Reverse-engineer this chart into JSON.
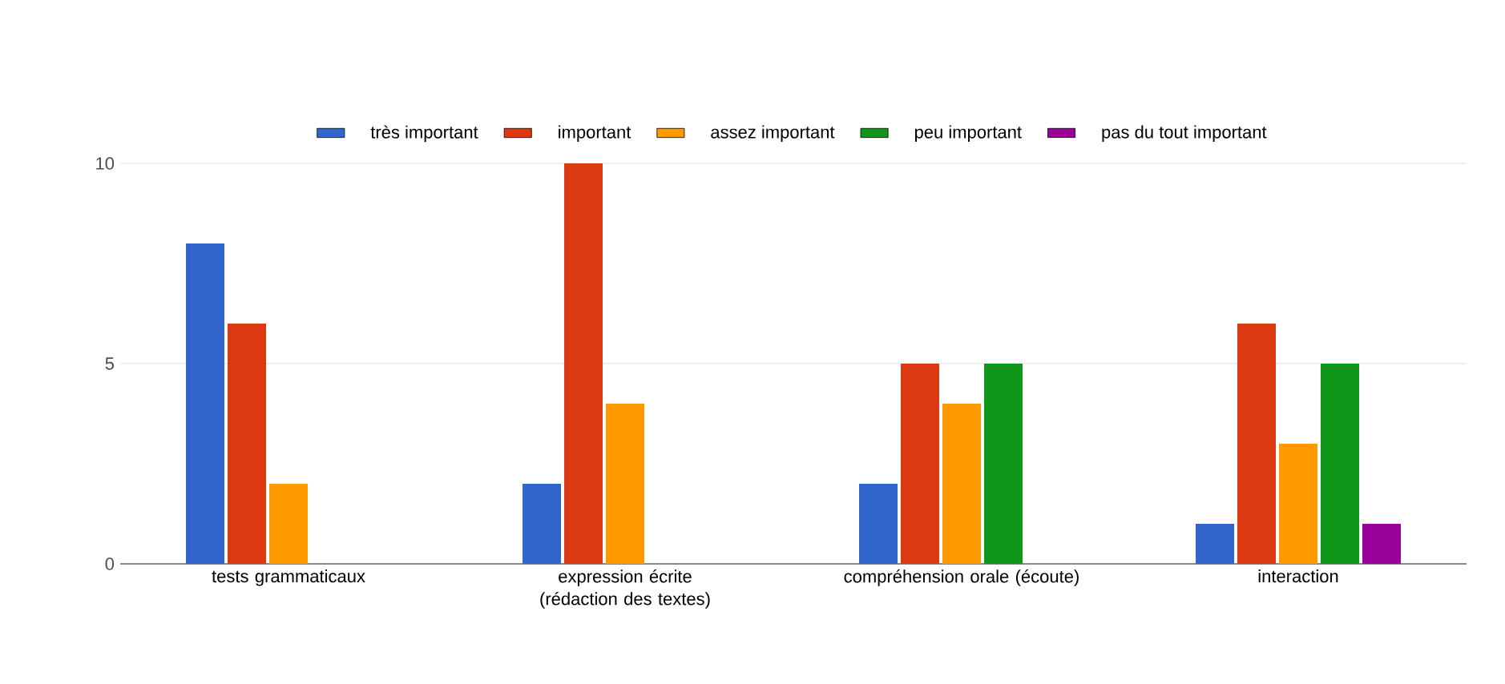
{
  "chart_data": {
    "type": "bar",
    "categories": [
      "tests grammaticaux",
      "expression écrite (rédaction des textes)",
      "compréhension orale (écoute)",
      "interaction"
    ],
    "series": [
      {
        "name": "très important",
        "color": "#3366cc",
        "values": [
          8,
          2,
          2,
          1
        ]
      },
      {
        "name": "important",
        "color": "#dc3912",
        "values": [
          6,
          10,
          5,
          6
        ]
      },
      {
        "name": "assez important",
        "color": "#ff9900",
        "values": [
          2,
          4,
          4,
          3
        ]
      },
      {
        "name": "peu important",
        "color": "#109618",
        "values": [
          0,
          0,
          5,
          5
        ]
      },
      {
        "name": "pas du tout important",
        "color": "#990099",
        "values": [
          0,
          0,
          0,
          1
        ]
      }
    ],
    "ylim": [
      0,
      10
    ],
    "yticks": [
      0,
      5,
      10
    ],
    "grid": "y",
    "legend": "top"
  }
}
